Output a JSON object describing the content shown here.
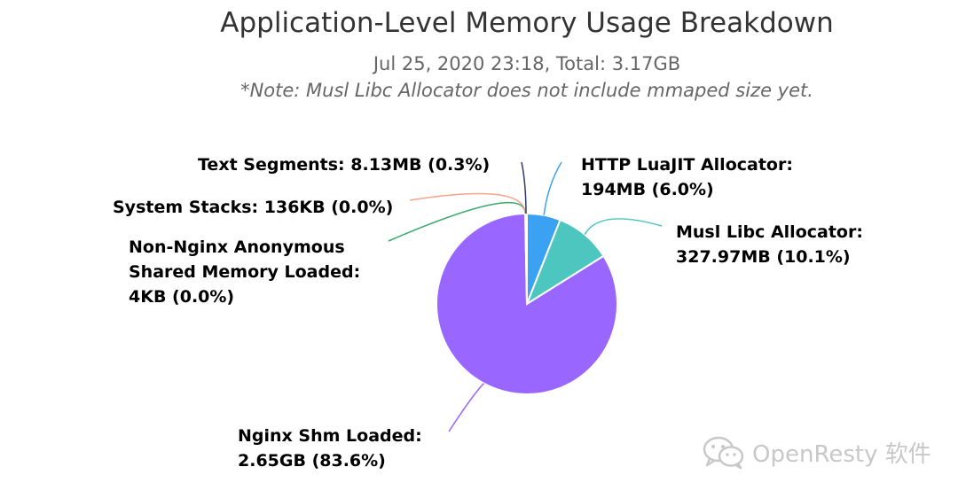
{
  "title": "Application-Level Memory Usage Breakdown",
  "subtitle": "Jul 25, 2020 23:18, Total: 3.17GB",
  "note": "*Note: Musl Libc Allocator does not include mmaped size yet.",
  "watermark": {
    "text": "OpenResty 软件",
    "icon": "wechat-icon"
  },
  "chart_data": {
    "type": "pie",
    "title": "Application-Level Memory Usage Breakdown",
    "subtitle": "Jul 25, 2020 23:18, Total: 3.17GB",
    "slices": [
      {
        "name": "HTTP LuaJIT Allocator",
        "label_lines": [
          "HTTP LuaJIT Allocator:",
          "194MB (6.0%)"
        ],
        "value": 194,
        "unit": "MB",
        "percent": 6.0,
        "color": "#3ba1f2"
      },
      {
        "name": "Musl Libc Allocator",
        "label_lines": [
          "Musl Libc Allocator:",
          "327.97MB (10.1%)"
        ],
        "value": 327.97,
        "unit": "MB",
        "percent": 10.1,
        "color": "#4dc6c0"
      },
      {
        "name": "Nginx Shm Loaded",
        "label_lines": [
          "Nginx Shm Loaded:",
          "2.65GB (83.6%)"
        ],
        "value": 2.65,
        "unit": "GB",
        "percent": 83.6,
        "color": "#9966ff"
      },
      {
        "name": "Non-Nginx Anonymous Shared Memory Loaded",
        "label_lines": [
          "Non-Nginx Anonymous",
          "Shared Memory Loaded:",
          "4KB (0.0%)"
        ],
        "value": 4,
        "unit": "KB",
        "percent": 0.0,
        "color": "#3aa86b"
      },
      {
        "name": "System Stacks",
        "label_lines": [
          "System Stacks: 136KB (0.0%)"
        ],
        "value": 136,
        "unit": "KB",
        "percent": 0.0,
        "color": "#f4a58a"
      },
      {
        "name": "Text Segments",
        "label_lines": [
          "Text Segments: 8.13MB (0.3%)"
        ],
        "value": 8.13,
        "unit": "MB",
        "percent": 0.3,
        "color": "#2b3a6b"
      }
    ]
  }
}
